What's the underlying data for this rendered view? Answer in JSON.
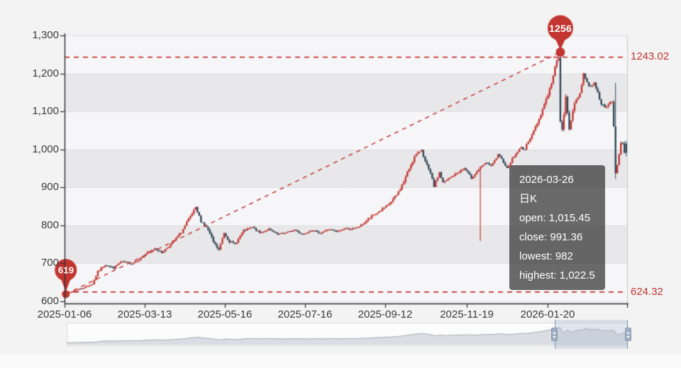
{
  "page": {
    "background": "#f3f3f4"
  },
  "colors": {
    "bull": "#c23531",
    "bear": "#314656",
    "accent_red": "#c23531",
    "band_light": "#f6f6f8",
    "band_dark": "#e8e8ea",
    "grid_line": "#dfdfe3",
    "plot_right_border": "#c8c8cd",
    "axis_line": "#2f2f2f",
    "label_text": "#3c3c3c",
    "tooltip_bg": "rgba(58,58,58,0.75)",
    "tooltip_text": "#ffffff",
    "slider_track_bg": "#fcfcfd",
    "slider_track_border": "#d8d8dc",
    "slider_shadow_fill": "#dadde3",
    "slider_shadow_line": "#a6abb4",
    "slider_window_fill": "rgba(170,185,205,0.35)",
    "slider_window_border": "#8595aa",
    "slider_handle": "#9fb0c6"
  },
  "tooltip": {
    "lines": [
      "2026-03-26",
      "日K",
      "open: 1,015.45",
      "close: 991.36",
      "lowest: 982",
      "highest: 1,022.5"
    ]
  },
  "chart_data": {
    "type": "candlestick",
    "series_name": "日K",
    "x_axis": {
      "tick_labels": [
        "2025-01-06",
        "2025-03-13",
        "2025-05-16",
        "2025-07-16",
        "2025-09-12",
        "2025-11-19",
        "2026-01-20"
      ]
    },
    "y_axis": {
      "tick_labels": [
        "600",
        "700",
        "800",
        "900",
        "1,000",
        "1,100",
        "1,200",
        "1,300"
      ],
      "min": 600,
      "max": 1300,
      "interval": 100
    },
    "markers": {
      "max": {
        "label": "1256",
        "value": 1256,
        "candle_index": 278
      },
      "min": {
        "label": "619",
        "value": 619,
        "candle_index": 0
      }
    },
    "marklines": {
      "high": {
        "label": "1243.02",
        "value": 1243.02
      },
      "low": {
        "label": "624.32",
        "value": 624.32
      },
      "diagonal_min_to_max": true
    },
    "pointer_line": {
      "candle_index": 233,
      "price_top": 951,
      "price_bottom": 759
    },
    "candles": {
      "count": 316,
      "seed": 7,
      "anchors": [
        [
          0,
          618,
          3
        ],
        [
          6,
          628,
          3
        ],
        [
          12,
          638,
          4
        ],
        [
          16,
          646,
          4
        ],
        [
          19,
          678,
          5
        ],
        [
          23,
          697,
          5
        ],
        [
          28,
          688,
          5
        ],
        [
          32,
          704,
          4
        ],
        [
          38,
          700,
          4
        ],
        [
          42,
          710,
          4
        ],
        [
          47,
          728,
          5
        ],
        [
          51,
          740,
          5
        ],
        [
          55,
          728,
          5
        ],
        [
          60,
          750,
          5
        ],
        [
          66,
          782,
          6
        ],
        [
          70,
          815,
          7
        ],
        [
          74,
          845,
          7
        ],
        [
          77,
          812,
          7
        ],
        [
          81,
          788,
          7
        ],
        [
          84,
          755,
          6
        ],
        [
          87,
          735,
          6
        ],
        [
          90,
          780,
          5
        ],
        [
          93,
          758,
          6
        ],
        [
          96,
          750,
          5
        ],
        [
          101,
          786,
          4
        ],
        [
          106,
          795,
          4
        ],
        [
          110,
          780,
          4
        ],
        [
          115,
          790,
          4
        ],
        [
          120,
          776,
          4
        ],
        [
          125,
          781,
          3
        ],
        [
          130,
          788,
          4
        ],
        [
          134,
          776,
          4
        ],
        [
          139,
          788,
          4
        ],
        [
          144,
          780,
          4
        ],
        [
          149,
          790,
          4
        ],
        [
          153,
          783,
          4
        ],
        [
          158,
          792,
          4
        ],
        [
          163,
          790,
          5
        ],
        [
          167,
          800,
          5
        ],
        [
          172,
          820,
          6
        ],
        [
          178,
          840,
          6
        ],
        [
          182,
          852,
          6
        ],
        [
          187,
          880,
          7
        ],
        [
          191,
          915,
          8
        ],
        [
          194,
          950,
          8
        ],
        [
          197,
          980,
          7
        ],
        [
          200,
          995,
          6
        ],
        [
          201,
          1000,
          5
        ],
        [
          203,
          968,
          7
        ],
        [
          206,
          935,
          7
        ],
        [
          208,
          903,
          6
        ],
        [
          211,
          940,
          6
        ],
        [
          213,
          912,
          6
        ],
        [
          217,
          925,
          5
        ],
        [
          221,
          938,
          5
        ],
        [
          225,
          950,
          5
        ],
        [
          229,
          925,
          5
        ],
        [
          233,
          947,
          5
        ],
        [
          236,
          960,
          4
        ],
        [
          238,
          965,
          4
        ],
        [
          240,
          955,
          4
        ],
        [
          244,
          985,
          5
        ],
        [
          247,
          968,
          5
        ],
        [
          249,
          950,
          5
        ],
        [
          252,
          975,
          5
        ],
        [
          255,
          995,
          5
        ],
        [
          257,
          1005,
          5
        ],
        [
          259,
          1000,
          5
        ],
        [
          261,
          1022,
          6
        ],
        [
          264,
          1048,
          7
        ],
        [
          267,
          1080,
          8
        ],
        [
          270,
          1120,
          9
        ],
        [
          273,
          1158,
          9
        ],
        [
          275,
          1192,
          8
        ],
        [
          277,
          1238,
          7
        ],
        [
          278,
          1244,
          6
        ],
        [
          279,
          1070,
          12
        ],
        [
          280,
          1048,
          10
        ],
        [
          281,
          1095,
          12
        ],
        [
          282,
          1135,
          10
        ],
        [
          284,
          1055,
          11
        ],
        [
          286,
          1105,
          9
        ],
        [
          288,
          1130,
          7
        ],
        [
          290,
          1148,
          7
        ],
        [
          292,
          1200,
          9
        ],
        [
          294,
          1175,
          7
        ],
        [
          296,
          1165,
          8
        ],
        [
          298,
          1178,
          7
        ],
        [
          300,
          1148,
          7
        ],
        [
          302,
          1122,
          7
        ],
        [
          304,
          1108,
          6
        ],
        [
          306,
          1118,
          6
        ],
        [
          308,
          1128,
          7
        ],
        [
          309,
          1060,
          14
        ],
        [
          310,
          942,
          10
        ],
        [
          311,
          958,
          8
        ],
        [
          312,
          985,
          7
        ],
        [
          313,
          1015,
          6
        ],
        [
          314,
          1018,
          5
        ],
        [
          315,
          991,
          5
        ]
      ],
      "overrides": {
        "0": {
          "low": 619
        },
        "278": {
          "high": 1256
        },
        "309": {
          "high": 1175,
          "low": 922
        },
        "314": {
          "high": 1022
        },
        "315": {
          "open": 1015.45,
          "close": 991.36,
          "low": 982,
          "high": 1022.5
        }
      }
    }
  }
}
